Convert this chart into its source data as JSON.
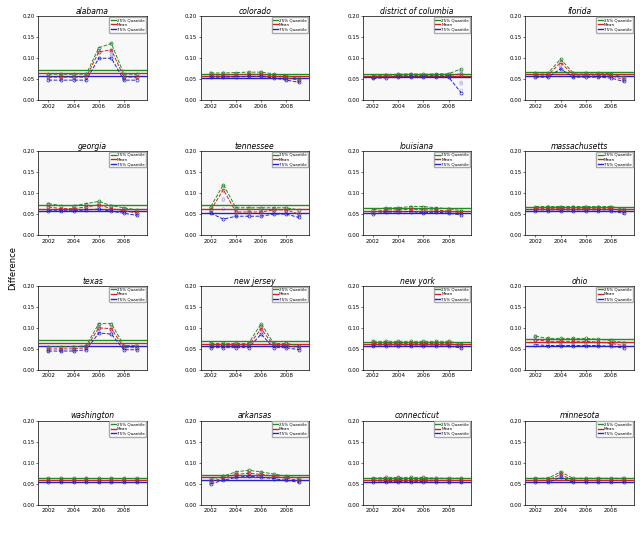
{
  "states": [
    "alabama",
    "colorado",
    "district of columbia",
    "florida",
    "georgia",
    "tennessee",
    "louisiana",
    "massachusetts",
    "texas",
    "new jersey",
    "new york",
    "ohio",
    "washington",
    "arkansas",
    "connecticut",
    "minnesota"
  ],
  "years": [
    2002,
    2003,
    2004,
    2005,
    2006,
    2007,
    2008,
    2009
  ],
  "data": {
    "alabama": {
      "q25": [
        0.062,
        0.062,
        0.062,
        0.062,
        0.125,
        0.135,
        0.062,
        0.062
      ],
      "median": [
        0.055,
        0.055,
        0.055,
        0.055,
        0.115,
        0.12,
        0.055,
        0.055
      ],
      "q75": [
        0.048,
        0.048,
        0.048,
        0.048,
        0.1,
        0.1,
        0.048,
        0.048
      ]
    },
    "colorado": {
      "q25": [
        0.065,
        0.065,
        0.066,
        0.067,
        0.067,
        0.063,
        0.058,
        0.052
      ],
      "median": [
        0.06,
        0.06,
        0.061,
        0.062,
        0.062,
        0.058,
        0.053,
        0.048
      ],
      "q75": [
        0.055,
        0.055,
        0.056,
        0.057,
        0.057,
        0.053,
        0.048,
        0.043
      ]
    },
    "district of columbia": {
      "q25": [
        0.058,
        0.06,
        0.062,
        0.063,
        0.062,
        0.063,
        0.063,
        0.075
      ],
      "median": [
        0.055,
        0.057,
        0.059,
        0.059,
        0.059,
        0.059,
        0.059,
        0.063
      ],
      "q75": [
        0.052,
        0.054,
        0.055,
        0.055,
        0.055,
        0.055,
        0.055,
        0.018
      ]
    },
    "florida": {
      "q25": [
        0.065,
        0.065,
        0.098,
        0.065,
        0.065,
        0.065,
        0.063,
        0.055
      ],
      "median": [
        0.06,
        0.06,
        0.09,
        0.06,
        0.06,
        0.06,
        0.058,
        0.05
      ],
      "q75": [
        0.055,
        0.055,
        0.075,
        0.055,
        0.055,
        0.055,
        0.053,
        0.045
      ]
    },
    "georgia": {
      "q25": [
        0.075,
        0.07,
        0.07,
        0.075,
        0.08,
        0.07,
        0.065,
        0.06
      ],
      "median": [
        0.067,
        0.063,
        0.063,
        0.067,
        0.072,
        0.063,
        0.058,
        0.053
      ],
      "q75": [
        0.058,
        0.058,
        0.058,
        0.06,
        0.062,
        0.057,
        0.052,
        0.047
      ]
    },
    "tennessee": {
      "q25": [
        0.068,
        0.12,
        0.065,
        0.065,
        0.065,
        0.065,
        0.065,
        0.06
      ],
      "median": [
        0.06,
        0.108,
        0.055,
        0.055,
        0.055,
        0.06,
        0.06,
        0.05
      ],
      "q75": [
        0.052,
        0.038,
        0.045,
        0.045,
        0.045,
        0.05,
        0.05,
        0.042
      ]
    },
    "louisiana": {
      "q25": [
        0.06,
        0.065,
        0.065,
        0.068,
        0.068,
        0.065,
        0.063,
        0.058
      ],
      "median": [
        0.055,
        0.06,
        0.06,
        0.062,
        0.06,
        0.06,
        0.057,
        0.053
      ],
      "q75": [
        0.05,
        0.055,
        0.055,
        0.056,
        0.053,
        0.055,
        0.052,
        0.048
      ]
    },
    "massachusetts": {
      "q25": [
        0.068,
        0.068,
        0.068,
        0.068,
        0.068,
        0.068,
        0.068,
        0.062
      ],
      "median": [
        0.063,
        0.063,
        0.063,
        0.063,
        0.063,
        0.063,
        0.063,
        0.057
      ],
      "q75": [
        0.057,
        0.057,
        0.057,
        0.057,
        0.057,
        0.057,
        0.057,
        0.052
      ]
    },
    "texas": {
      "q25": [
        0.055,
        0.055,
        0.055,
        0.058,
        0.11,
        0.11,
        0.058,
        0.058
      ],
      "median": [
        0.05,
        0.05,
        0.05,
        0.053,
        0.1,
        0.098,
        0.053,
        0.053
      ],
      "q75": [
        0.045,
        0.045,
        0.045,
        0.048,
        0.088,
        0.085,
        0.048,
        0.048
      ]
    },
    "new jersey": {
      "q25": [
        0.063,
        0.063,
        0.063,
        0.063,
        0.11,
        0.063,
        0.063,
        0.058
      ],
      "median": [
        0.058,
        0.058,
        0.058,
        0.058,
        0.098,
        0.058,
        0.058,
        0.053
      ],
      "q75": [
        0.053,
        0.053,
        0.053,
        0.053,
        0.085,
        0.053,
        0.053,
        0.048
      ]
    },
    "new york": {
      "q25": [
        0.068,
        0.068,
        0.068,
        0.068,
        0.068,
        0.068,
        0.068,
        0.062
      ],
      "median": [
        0.063,
        0.063,
        0.063,
        0.063,
        0.063,
        0.063,
        0.063,
        0.057
      ],
      "q75": [
        0.057,
        0.057,
        0.057,
        0.057,
        0.057,
        0.057,
        0.057,
        0.052
      ]
    },
    "ohio": {
      "q25": [
        0.08,
        0.075,
        0.075,
        0.075,
        0.075,
        0.073,
        0.07,
        0.065
      ],
      "median": [
        0.072,
        0.068,
        0.068,
        0.068,
        0.068,
        0.066,
        0.063,
        0.058
      ],
      "q75": [
        0.06,
        0.058,
        0.058,
        0.058,
        0.058,
        0.058,
        0.056,
        0.052
      ]
    },
    "washington": {
      "q25": [
        0.063,
        0.063,
        0.063,
        0.063,
        0.063,
        0.063,
        0.063,
        0.063
      ],
      "median": [
        0.058,
        0.058,
        0.058,
        0.058,
        0.058,
        0.058,
        0.058,
        0.058
      ],
      "q75": [
        0.053,
        0.053,
        0.053,
        0.053,
        0.053,
        0.053,
        0.053,
        0.053
      ]
    },
    "arkansas": {
      "q25": [
        0.06,
        0.068,
        0.078,
        0.082,
        0.078,
        0.073,
        0.068,
        0.063
      ],
      "median": [
        0.055,
        0.063,
        0.072,
        0.075,
        0.072,
        0.068,
        0.063,
        0.058
      ],
      "q75": [
        0.05,
        0.058,
        0.065,
        0.068,
        0.065,
        0.062,
        0.058,
        0.053
      ]
    },
    "connecticut": {
      "q25": [
        0.063,
        0.065,
        0.065,
        0.065,
        0.065,
        0.063,
        0.063,
        0.063
      ],
      "median": [
        0.058,
        0.06,
        0.06,
        0.06,
        0.06,
        0.058,
        0.058,
        0.058
      ],
      "q75": [
        0.053,
        0.055,
        0.055,
        0.055,
        0.055,
        0.053,
        0.053,
        0.053
      ]
    },
    "minnesota": {
      "q25": [
        0.063,
        0.063,
        0.078,
        0.063,
        0.063,
        0.063,
        0.063,
        0.063
      ],
      "median": [
        0.058,
        0.058,
        0.072,
        0.058,
        0.058,
        0.058,
        0.058,
        0.058
      ],
      "q75": [
        0.053,
        0.053,
        0.065,
        0.053,
        0.053,
        0.053,
        0.053,
        0.053
      ]
    }
  },
  "ref_lines": {
    "alabama": {
      "q25": 0.072,
      "median": 0.065,
      "q75": 0.057
    },
    "colorado": {
      "q25": 0.063,
      "median": 0.058,
      "q75": 0.053
    },
    "district of columbia": {
      "q25": 0.063,
      "median": 0.059,
      "q75": 0.055
    },
    "florida": {
      "q25": 0.068,
      "median": 0.062,
      "q75": 0.057
    },
    "georgia": {
      "q25": 0.071,
      "median": 0.063,
      "q75": 0.057
    },
    "tennessee": {
      "q25": 0.072,
      "median": 0.063,
      "q75": 0.052
    },
    "louisiana": {
      "q25": 0.064,
      "median": 0.058,
      "q75": 0.053
    },
    "massachusetts": {
      "q25": 0.067,
      "median": 0.062,
      "q75": 0.057
    },
    "texas": {
      "q25": 0.07,
      "median": 0.063,
      "q75": 0.057
    },
    "new jersey": {
      "q25": 0.068,
      "median": 0.062,
      "q75": 0.057
    },
    "new york": {
      "q25": 0.067,
      "median": 0.062,
      "q75": 0.057
    },
    "ohio": {
      "q25": 0.074,
      "median": 0.066,
      "q75": 0.058
    },
    "washington": {
      "q25": 0.063,
      "median": 0.058,
      "q75": 0.053
    },
    "arkansas": {
      "q25": 0.071,
      "median": 0.066,
      "q75": 0.06
    },
    "connecticut": {
      "q25": 0.064,
      "median": 0.059,
      "q75": 0.054
    },
    "minnesota": {
      "q25": 0.064,
      "median": 0.059,
      "q75": 0.054
    }
  },
  "colors": {
    "q25": "#228B22",
    "median": "#CC2222",
    "q75": "#2222CC"
  },
  "scatter_color": "#9999DD",
  "ylim": [
    0.0,
    0.2
  ],
  "yticks": [
    0.0,
    0.05,
    0.1,
    0.15,
    0.2
  ],
  "ytick_labels": [
    "0.00",
    "0.05",
    "0.10",
    "0.15",
    "0.20"
  ],
  "legend_labels": [
    "25% Quantile",
    "Mean",
    "75% Quantile"
  ],
  "nrows": 4,
  "ncols": 4,
  "figsize": [
    6.4,
    5.37
  ],
  "dpi": 100
}
